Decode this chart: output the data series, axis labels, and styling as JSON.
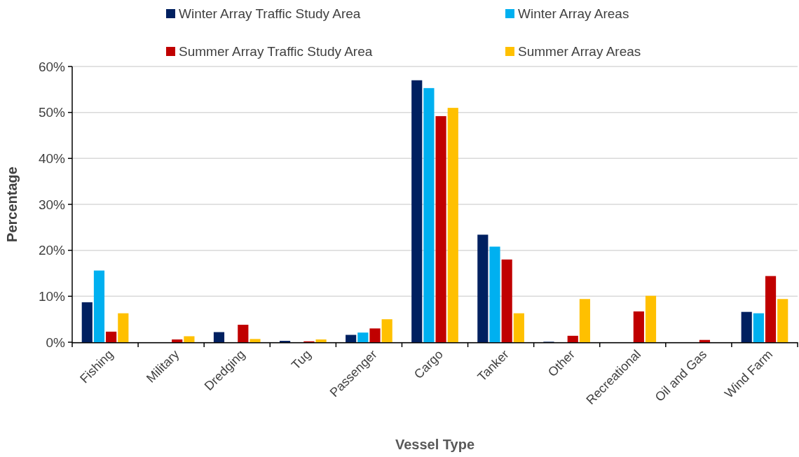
{
  "chart_data": {
    "type": "bar",
    "xlabel": "Vessel Type",
    "ylabel": "Percentage",
    "categories": [
      "Fishing",
      "Military",
      "Dredging",
      "Tug",
      "Passenger",
      "Cargo",
      "Tanker",
      "Other",
      "Recreational",
      "Oil and Gas",
      "Wind Farm"
    ],
    "series": [
      {
        "name": "Winter Array Traffic Study Area",
        "color": "#002060",
        "values": [
          8.7,
          0,
          2.2,
          0.3,
          1.6,
          57.0,
          23.4,
          0.1,
          0,
          0,
          6.6
        ]
      },
      {
        "name": "Winter Array Areas",
        "color": "#00b0f0",
        "values": [
          15.6,
          0,
          0,
          0,
          2.1,
          55.3,
          20.8,
          0,
          0,
          0,
          6.3
        ]
      },
      {
        "name": "Summer Array Traffic Study Area",
        "color": "#c00000",
        "values": [
          2.3,
          0.6,
          3.8,
          0.2,
          3.0,
          49.2,
          18.0,
          1.4,
          6.7,
          0.5,
          14.4
        ]
      },
      {
        "name": "Summer Array Areas",
        "color": "#ffc000",
        "values": [
          6.3,
          1.3,
          0.7,
          0.6,
          5.0,
          51.0,
          6.3,
          9.4,
          10.1,
          0,
          9.4
        ]
      }
    ],
    "ylim": [
      0,
      60
    ],
    "yticks": [
      {
        "value": 0,
        "label": "0%"
      },
      {
        "value": 10,
        "label": "10%"
      },
      {
        "value": 20,
        "label": "20%"
      },
      {
        "value": 30,
        "label": "30%"
      },
      {
        "value": 40,
        "label": "40%"
      },
      {
        "value": 50,
        "label": "50%"
      },
      {
        "value": 60,
        "label": "60%"
      }
    ],
    "grid": "y",
    "legend": "top"
  }
}
